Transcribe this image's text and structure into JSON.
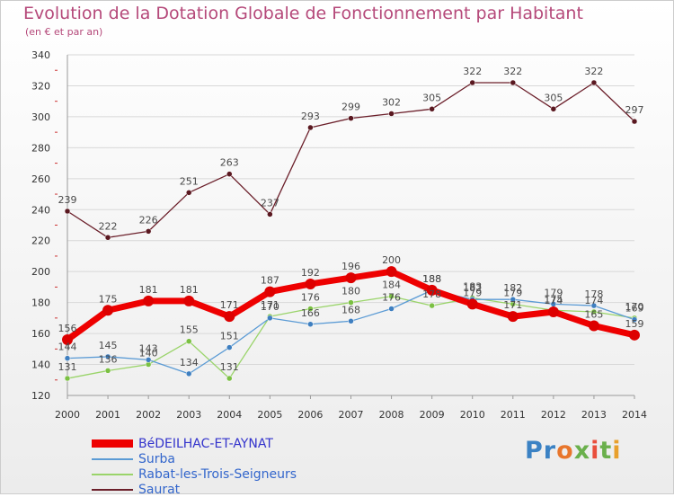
{
  "header": {
    "title": "Evolution de la Dotation Globale de Fonctionnement par Habitant",
    "subtitle": "(en € et par an)"
  },
  "logo": {
    "text": "Proxiti",
    "colors": [
      "#3b82c4",
      "#3b82c4",
      "#e8762c",
      "#6ab04c",
      "#e94e3c",
      "#6ab04c",
      "#e8a02c"
    ]
  },
  "colors": {
    "axis": "#9a9a9a",
    "grid": "#d8d8d8",
    "tick_text": "#333333",
    "label_text": "#4a4a4a",
    "minor_tick": "#cc3333"
  },
  "chart_data": {
    "type": "line",
    "title": "Evolution de la Dotation Globale de Fonctionnement par Habitant",
    "subtitle": "(en € et par an)",
    "categories": [
      "2000",
      "2001",
      "2002",
      "2003",
      "2004",
      "2005",
      "2006",
      "2007",
      "2008",
      "2009",
      "2010",
      "2011",
      "2012",
      "2013",
      "2014"
    ],
    "ylim": [
      120,
      340
    ],
    "yticks": [
      120,
      140,
      160,
      180,
      200,
      220,
      240,
      260,
      280,
      300,
      320,
      340
    ],
    "grid": true,
    "legend": "bottom-left",
    "series": [
      {
        "name": "Saurat",
        "color": "#6b1f2a",
        "marker": "#5a1820",
        "values": [
          239,
          222,
          226,
          251,
          263,
          237,
          293,
          299,
          302,
          305,
          322,
          322,
          305,
          322,
          297
        ]
      },
      {
        "name": "Rabat-les-Trois-Seigneurs",
        "color": "#9ad46a",
        "marker": "#7bc043",
        "values": [
          131,
          136,
          140,
          155,
          131,
          171,
          176,
          180,
          184,
          178,
          183,
          179,
          175,
          174,
          170
        ]
      },
      {
        "name": "Surba",
        "color": "#5b9bd5",
        "marker": "#3f7fc0",
        "values": [
          144,
          145,
          143,
          134,
          151,
          170,
          166,
          168,
          176,
          188,
          182,
          182,
          179,
          178,
          169
        ]
      },
      {
        "name": "BéDEILHAC-ET-AYNAT",
        "color": "#ee0000",
        "marker": "#dd0000",
        "values": [
          156,
          175,
          181,
          181,
          171,
          187,
          192,
          196,
          200,
          188,
          179,
          171,
          174,
          165,
          159
        ]
      }
    ],
    "legend_order": [
      "BéDEILHAC-ET-AYNAT",
      "Surba",
      "Rabat-les-Trois-Seigneurs",
      "Saurat"
    ]
  }
}
